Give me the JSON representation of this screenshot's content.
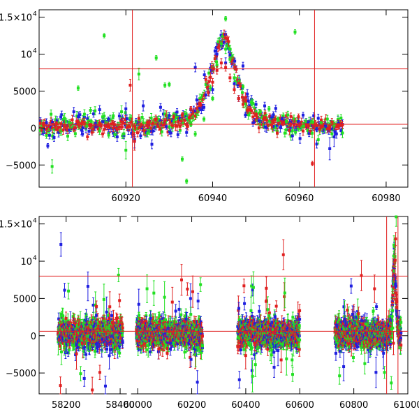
{
  "chart_data": [
    {
      "type": "scatter",
      "title": "",
      "xlabel": "",
      "ylabel": "",
      "xlim": [
        60900,
        60985
      ],
      "ylim": [
        -8000,
        16000
      ],
      "grid": false,
      "xticks": [
        {
          "value": 60920,
          "label": "60920"
        },
        {
          "value": 60940,
          "label": "60940"
        },
        {
          "value": 60960,
          "label": "60960"
        },
        {
          "value": 60980,
          "label": "60980"
        }
      ],
      "yticks": [
        {
          "value": -5000,
          "label": "−5000"
        },
        {
          "value": 0,
          "label": "0"
        },
        {
          "value": 5000,
          "label": "5000"
        },
        {
          "value": 10000,
          "label": "10",
          "exp": "4"
        },
        {
          "value": 15000,
          "label": "1.5×10",
          "exp": "4"
        }
      ],
      "hlines": [
        8000,
        500
      ],
      "vlines": [
        60921.5,
        60963.5
      ],
      "line_color": "#e02020",
      "series": [
        {
          "name": "blue",
          "color": "#1f1fe0",
          "points": [
            [
              60902,
              -2400,
              300
            ],
            [
              60905,
              1500,
              400
            ],
            [
              60908,
              2200,
              600
            ],
            [
              60910,
              -800,
              300
            ],
            [
              60913,
              600,
              500
            ],
            [
              60916,
              1200,
              300
            ],
            [
              60918,
              -1200,
              600
            ],
            [
              60920,
              2600,
              800
            ],
            [
              60922,
              -1800,
              900
            ],
            [
              60924,
              3000,
              700
            ],
            [
              60926,
              -2200,
              600
            ],
            [
              60928,
              2800,
              500
            ],
            [
              60930,
              1700,
              400
            ],
            [
              60932,
              -900,
              400
            ],
            [
              60934,
              -600,
              500
            ],
            [
              60936,
              8200,
              600
            ],
            [
              60938,
              2800,
              400
            ],
            [
              60940,
              5200,
              500
            ],
            [
              60941,
              10000,
              700
            ],
            [
              60942,
              11200,
              600
            ],
            [
              60943,
              8800,
              700
            ],
            [
              60944,
              9800,
              600
            ],
            [
              60945,
              6000,
              500
            ],
            [
              60946,
              4000,
              400
            ],
            [
              60948,
              4600,
              600
            ],
            [
              60950,
              3200,
              400
            ],
            [
              60952,
              3000,
              500
            ],
            [
              60954,
              1800,
              400
            ],
            [
              60956,
              1200,
              300
            ],
            [
              60958,
              800,
              300
            ],
            [
              60960,
              500,
              300
            ],
            [
              60962,
              700,
              300
            ],
            [
              60964,
              -200,
              300
            ],
            [
              60966,
              400,
              400
            ],
            [
              60967,
              -2800,
              1500
            ],
            [
              60968,
              -1200,
              1300
            ],
            [
              60969,
              600,
              400
            ],
            [
              60947,
              8400,
              500
            ]
          ]
        },
        {
          "name": "green",
          "color": "#22e022",
          "points": [
            [
              60903,
              -5200,
              900
            ],
            [
              60907,
              600,
              300
            ],
            [
              60909,
              5400,
              300
            ],
            [
              60911,
              400,
              300
            ],
            [
              60915,
              12500,
              300
            ],
            [
              60917,
              1400,
              400
            ],
            [
              60919,
              2200,
              800
            ],
            [
              60920,
              -3000,
              1200
            ],
            [
              60923,
              7300,
              800
            ],
            [
              60925,
              -700,
              500
            ],
            [
              60927,
              9500,
              300
            ],
            [
              60929,
              5800,
              300
            ],
            [
              60931,
              1800,
              300
            ],
            [
              60933,
              -4200,
              300
            ],
            [
              60934,
              -7200,
              300
            ],
            [
              60936,
              -800,
              300
            ],
            [
              60938,
              1200,
              300
            ],
            [
              60940,
              4000,
              300
            ],
            [
              60941,
              8500,
              300
            ],
            [
              60942,
              11400,
              400
            ],
            [
              60943,
              14800,
              300
            ],
            [
              60944,
              9300,
              400
            ],
            [
              60945,
              6800,
              500
            ],
            [
              60947,
              5600,
              300
            ],
            [
              60949,
              3400,
              400
            ],
            [
              60951,
              2200,
              300
            ],
            [
              60953,
              2600,
              300
            ],
            [
              60955,
              1200,
              300
            ],
            [
              60957,
              900,
              300
            ],
            [
              60959,
              13000,
              300
            ],
            [
              60961,
              300,
              300
            ],
            [
              60963,
              800,
              300
            ],
            [
              60965,
              600,
              300
            ],
            [
              60968,
              400,
              300
            ],
            [
              60906,
              200,
              300
            ],
            [
              60912,
              900,
              300
            ],
            [
              60930,
              5900,
              300
            ],
            [
              60935,
              500,
              300
            ]
          ]
        },
        {
          "name": "red",
          "color": "#e02020",
          "points": [
            [
              60901,
              400,
              300
            ],
            [
              60904,
              600,
              300
            ],
            [
              60906,
              200,
              300
            ],
            [
              60909,
              800,
              300
            ],
            [
              60912,
              300,
              300
            ],
            [
              60914,
              500,
              300
            ],
            [
              60917,
              700,
              300
            ],
            [
              60919,
              100,
              300
            ],
            [
              60921,
              5800,
              800
            ],
            [
              60922,
              -1800,
              1200
            ],
            [
              60923,
              1300,
              500
            ],
            [
              60925,
              800,
              300
            ],
            [
              60927,
              1200,
              300
            ],
            [
              60929,
              1000,
              300
            ],
            [
              60931,
              1500,
              300
            ],
            [
              60933,
              1800,
              300
            ],
            [
              60935,
              2600,
              300
            ],
            [
              60937,
              3200,
              300
            ],
            [
              60939,
              4800,
              400
            ],
            [
              60940,
              6200,
              500
            ],
            [
              60941,
              7800,
              500
            ],
            [
              60942,
              8800,
              600
            ],
            [
              60943,
              8200,
              500
            ],
            [
              60944,
              6800,
              500
            ],
            [
              60945,
              5200,
              500
            ],
            [
              60946,
              4000,
              400
            ],
            [
              60947,
              3200,
              400
            ],
            [
              60948,
              2400,
              400
            ],
            [
              60950,
              1800,
              300
            ],
            [
              60952,
              1300,
              300
            ],
            [
              60954,
              900,
              300
            ],
            [
              60956,
              700,
              300
            ],
            [
              60958,
              500,
              300
            ],
            [
              60960,
              400,
              300
            ],
            [
              60962,
              300,
              300
            ],
            [
              60963,
              -4800,
              300
            ],
            [
              60965,
              200,
              300
            ],
            [
              60967,
              100,
              300
            ],
            [
              60969,
              300,
              300
            ]
          ]
        }
      ]
    },
    {
      "type": "scatter",
      "title": "",
      "xlabel": "",
      "ylabel": "",
      "xlim": [
        58100,
        61000
      ],
      "ylim": [
        -7800,
        16000
      ],
      "grid": false,
      "axis_break": {
        "between": [
          58420,
          59980
        ],
        "mapped_to": [
          58420,
          58445
        ]
      },
      "xticks": [
        {
          "value": 58200,
          "label": "58200"
        },
        {
          "value": 58400,
          "label": "58400"
        },
        {
          "value": 60000,
          "label": "60000"
        },
        {
          "value": 60200,
          "label": "60200"
        },
        {
          "value": 60400,
          "label": "60400"
        },
        {
          "value": 60600,
          "label": "60600"
        },
        {
          "value": 60800,
          "label": "60800"
        },
        {
          "value": 61000,
          "label": "61000"
        }
      ],
      "yticks": [
        {
          "value": -5000,
          "label": "−5000"
        },
        {
          "value": 0,
          "label": "0"
        },
        {
          "value": 5000,
          "label": "5000"
        },
        {
          "value": 10000,
          "label": "10",
          "exp": "4"
        },
        {
          "value": 15000,
          "label": "1.5×10",
          "exp": "4"
        }
      ],
      "hlines": [
        8000,
        600
      ],
      "vlines": [
        60921.5,
        60963.5
      ],
      "line_color": "#e02020",
      "segments": [
        [
          58170,
          58410
        ],
        [
          59995,
          60240
        ],
        [
          60370,
          60600
        ],
        [
          60730,
          60975
        ]
      ],
      "peaks": [
        [
          60950,
          9500
        ]
      ],
      "series": [
        {
          "name": "blue",
          "color": "#1f1fe0"
        },
        {
          "name": "green",
          "color": "#22e022"
        },
        {
          "name": "red",
          "color": "#e02020"
        }
      ]
    }
  ]
}
